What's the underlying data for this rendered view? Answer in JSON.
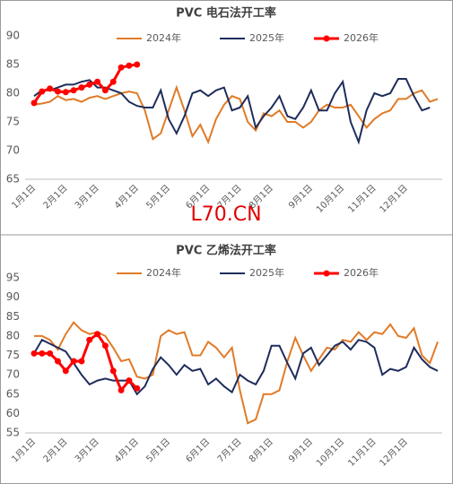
{
  "watermark": "L70.CN",
  "chart_data": [
    {
      "type": "line",
      "title": "PVC 电石法开工率",
      "categories": [
        "1月1日",
        null,
        null,
        null,
        "2月1日",
        null,
        null,
        null,
        "3月1日",
        null,
        null,
        null,
        null,
        "4月1日",
        null,
        null,
        null,
        "5月1日",
        null,
        null,
        null,
        null,
        "6月1日",
        null,
        null,
        null,
        "7月1日",
        null,
        null,
        null,
        "8月1日",
        null,
        null,
        null,
        null,
        "9月1日",
        null,
        null,
        null,
        "10月1日",
        null,
        null,
        null,
        "11月1日",
        null,
        null,
        null,
        "12月1日",
        null,
        null,
        null,
        null
      ],
      "ylim": [
        65,
        90
      ],
      "yticks": [
        65,
        70,
        75,
        80,
        85,
        90
      ],
      "legend": "top",
      "series": [
        {
          "name": "2024年",
          "color": "#e07b28",
          "values": [
            78,
            78.2,
            78.5,
            79.5,
            78.8,
            79,
            78.5,
            79.2,
            79.5,
            79,
            79.5,
            80,
            80.3,
            80,
            77,
            72,
            73,
            77,
            81,
            77,
            72.5,
            74.5,
            71.5,
            75.5,
            78,
            79.5,
            79,
            75,
            73.5,
            76.5,
            76,
            77,
            75,
            75,
            74,
            75,
            77,
            78,
            77.5,
            77.5,
            78,
            76,
            74,
            75.5,
            76.5,
            77,
            79,
            79,
            80,
            80.5,
            78.5,
            79
          ]
        },
        {
          "name": "2025年",
          "color": "#1f2d5c",
          "values": [
            79.5,
            80.5,
            80.5,
            81,
            81.5,
            81.5,
            82,
            82.3,
            81,
            81,
            80.5,
            80,
            78.5,
            77.8,
            77.5,
            77.5,
            80.5,
            75.5,
            73,
            76,
            80,
            80.5,
            79.5,
            80.5,
            81,
            77,
            77.5,
            79.5,
            74,
            76,
            77.5,
            79.5,
            76,
            75.5,
            77.5,
            80.5,
            77,
            77,
            80,
            82,
            75,
            71.5,
            77,
            80,
            79.5,
            80,
            82.5,
            82.5,
            79.5,
            77,
            77.5,
            null
          ]
        },
        {
          "name": "2026年",
          "color": "#ff0000",
          "markers": true,
          "values": [
            78.3,
            80.3,
            80.8,
            80.3,
            80.2,
            80.5,
            81,
            81.5,
            82,
            80.5,
            82,
            84.5,
            84.8,
            85,
            null,
            null,
            null,
            null,
            null,
            null,
            null,
            null,
            null,
            null,
            null,
            null,
            null,
            null,
            null,
            null,
            null,
            null,
            null,
            null,
            null,
            null,
            null,
            null,
            null,
            null,
            null,
            null,
            null,
            null,
            null,
            null,
            null,
            null,
            null,
            null,
            null,
            null
          ]
        }
      ]
    },
    {
      "type": "line",
      "title": "PVC 乙烯法开工率",
      "categories": [
        "1月1日",
        null,
        null,
        null,
        "2月1日",
        null,
        null,
        null,
        "3月1日",
        null,
        null,
        null,
        null,
        "4月1日",
        null,
        null,
        null,
        "5月1日",
        null,
        null,
        null,
        null,
        "6月1日",
        null,
        null,
        null,
        "7月1日",
        null,
        null,
        null,
        "8月1日",
        null,
        null,
        null,
        null,
        "9月1日",
        null,
        null,
        null,
        "10月1日",
        null,
        null,
        null,
        "11月1日",
        null,
        null,
        null,
        "12月1日",
        null,
        null,
        null,
        null
      ],
      "ylim": [
        55,
        95
      ],
      "yticks": [
        55,
        60,
        65,
        70,
        75,
        80,
        85,
        90,
        95
      ],
      "legend": "top",
      "series": [
        {
          "name": "2024年",
          "color": "#e07b28",
          "values": [
            80,
            80,
            79,
            76.5,
            80.5,
            83.5,
            81.5,
            80.5,
            81,
            80,
            77,
            73.5,
            74,
            69.5,
            69,
            70,
            80,
            81.5,
            80.5,
            81,
            75,
            75,
            78.5,
            77,
            74.5,
            77,
            66,
            57.5,
            58.5,
            65,
            65,
            66,
            73.5,
            79.5,
            75,
            71,
            74,
            77,
            76.5,
            79,
            78.5,
            81,
            79,
            81,
            80.5,
            83,
            80,
            79.5,
            82,
            75,
            73,
            78.5
          ]
        },
        {
          "name": "2025年",
          "color": "#1f2d5c",
          "values": [
            75.5,
            79,
            78,
            77,
            76,
            73,
            70,
            67.5,
            68.5,
            69,
            68.5,
            68.5,
            68.5,
            65,
            67,
            71.5,
            74.5,
            72.5,
            70,
            72.5,
            71,
            71.5,
            67.5,
            69,
            67,
            65.5,
            70,
            68.5,
            67.5,
            71,
            77.5,
            77.5,
            73,
            69,
            75.5,
            77,
            72.5,
            75,
            77.5,
            78.5,
            76.5,
            79,
            78.5,
            77,
            70,
            71.5,
            71,
            72,
            77,
            74,
            72,
            71
          ]
        },
        {
          "name": "2026年",
          "color": "#ff0000",
          "markers": true,
          "values": [
            75.5,
            75.5,
            75.5,
            73.5,
            71,
            73.5,
            73.5,
            79,
            80.5,
            77.5,
            71,
            66,
            68.5,
            66.5,
            null,
            null,
            null,
            null,
            null,
            null,
            null,
            null,
            null,
            null,
            null,
            null,
            null,
            null,
            null,
            null,
            null,
            null,
            null,
            null,
            null,
            null,
            null,
            null,
            null,
            null,
            null,
            null,
            null,
            null,
            null,
            null,
            null,
            null,
            null,
            null,
            null,
            null
          ]
        }
      ]
    }
  ]
}
